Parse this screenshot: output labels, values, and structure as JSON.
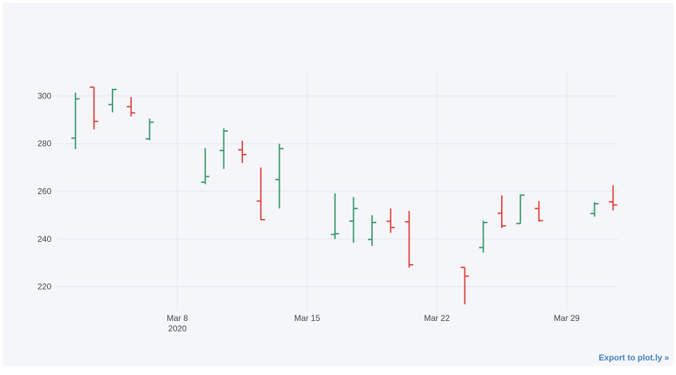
{
  "chart_data": {
    "type": "ohlc",
    "title": "",
    "xlabel": "",
    "ylabel": "",
    "ylim": [
      210,
      310
    ],
    "xlim": [
      "2020-03-01T12:00",
      "2020-03-31T18:00"
    ],
    "y_ticks": [
      220,
      240,
      260,
      280,
      300
    ],
    "x_ticks": [
      {
        "date": "2020-03-08",
        "label": "Mar 8",
        "sublabel": "2020"
      },
      {
        "date": "2020-03-15",
        "label": "Mar 15",
        "sublabel": ""
      },
      {
        "date": "2020-03-22",
        "label": "Mar 22",
        "sublabel": ""
      },
      {
        "date": "2020-03-29",
        "label": "Mar 29",
        "sublabel": ""
      }
    ],
    "grid": true,
    "legend": "none",
    "increasing_color": "#3d9970",
    "decreasing_color": "#e0453d",
    "points": [
      {
        "date": "2020-03-02",
        "open": 282.3,
        "high": 301.4,
        "low": 277.7,
        "close": 298.8
      },
      {
        "date": "2020-03-03",
        "open": 303.7,
        "high": 303.7,
        "low": 286.0,
        "close": 289.3
      },
      {
        "date": "2020-03-04",
        "open": 296.4,
        "high": 303.0,
        "low": 293.1,
        "close": 302.7
      },
      {
        "date": "2020-03-05",
        "open": 295.5,
        "high": 299.6,
        "low": 291.4,
        "close": 292.9
      },
      {
        "date": "2020-03-06",
        "open": 282.0,
        "high": 290.5,
        "low": 281.4,
        "close": 289.0
      },
      {
        "date": "2020-03-09",
        "open": 263.8,
        "high": 278.1,
        "low": 263.0,
        "close": 266.2
      },
      {
        "date": "2020-03-10",
        "open": 277.1,
        "high": 286.4,
        "low": 269.4,
        "close": 285.3
      },
      {
        "date": "2020-03-11",
        "open": 277.4,
        "high": 281.2,
        "low": 271.9,
        "close": 275.4
      },
      {
        "date": "2020-03-12",
        "open": 255.9,
        "high": 270.0,
        "low": 248.0,
        "close": 248.1
      },
      {
        "date": "2020-03-13",
        "open": 264.9,
        "high": 279.9,
        "low": 252.8,
        "close": 277.9
      },
      {
        "date": "2020-03-16",
        "open": 241.9,
        "high": 259.1,
        "low": 240.0,
        "close": 242.2
      },
      {
        "date": "2020-03-17",
        "open": 247.5,
        "high": 257.6,
        "low": 238.4,
        "close": 252.8
      },
      {
        "date": "2020-03-18",
        "open": 239.8,
        "high": 250.0,
        "low": 237.1,
        "close": 246.9
      },
      {
        "date": "2020-03-19",
        "open": 247.4,
        "high": 252.8,
        "low": 242.6,
        "close": 244.8
      },
      {
        "date": "2020-03-20",
        "open": 247.2,
        "high": 251.8,
        "low": 228.0,
        "close": 229.2
      },
      {
        "date": "2020-03-23",
        "open": 228.1,
        "high": 228.1,
        "low": 212.6,
        "close": 224.4
      },
      {
        "date": "2020-03-24",
        "open": 236.4,
        "high": 247.7,
        "low": 234.3,
        "close": 246.9
      },
      {
        "date": "2020-03-25",
        "open": 250.8,
        "high": 258.3,
        "low": 244.6,
        "close": 245.5
      },
      {
        "date": "2020-03-26",
        "open": 246.5,
        "high": 258.7,
        "low": 246.4,
        "close": 258.4
      },
      {
        "date": "2020-03-27",
        "open": 252.8,
        "high": 255.9,
        "low": 247.3,
        "close": 247.7
      },
      {
        "date": "2020-03-30",
        "open": 250.7,
        "high": 255.5,
        "low": 249.4,
        "close": 254.8
      },
      {
        "date": "2020-03-31",
        "open": 255.6,
        "high": 262.5,
        "low": 252.0,
        "close": 254.3
      }
    ]
  },
  "footer": {
    "export_label": "Export to plot.ly »"
  }
}
